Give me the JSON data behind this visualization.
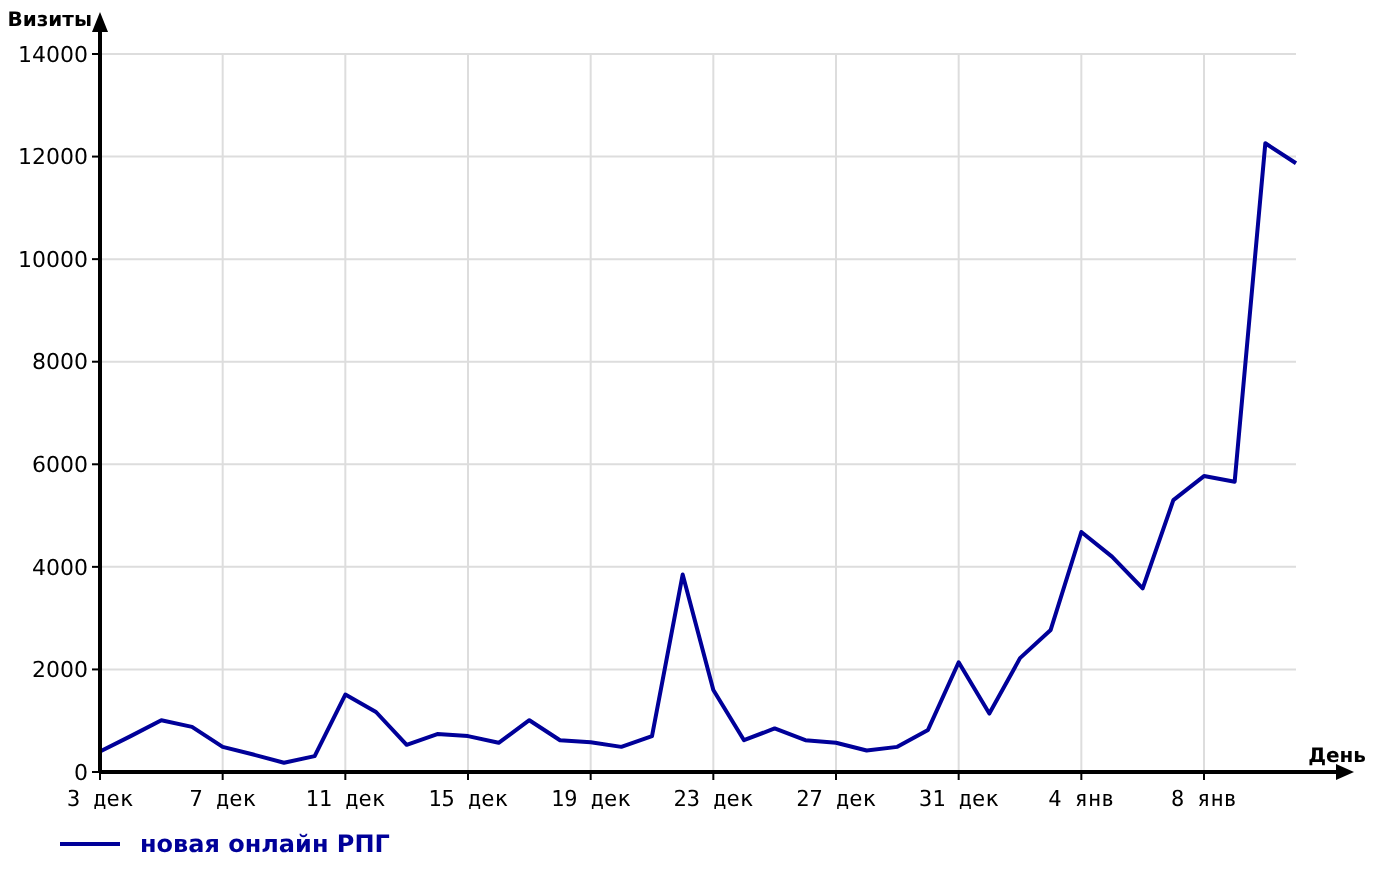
{
  "chart_data": {
    "type": "line",
    "xlabel": "День",
    "ylabel": "Визиты",
    "categories": [
      "3 дек",
      null,
      null,
      null,
      "7 дек",
      null,
      null,
      null,
      "11 дек",
      null,
      null,
      null,
      "15 дек",
      null,
      null,
      null,
      "19 дек",
      null,
      null,
      null,
      "23 дек",
      null,
      null,
      null,
      "27 дек",
      null,
      null,
      null,
      "31 дек",
      null,
      null,
      null,
      "4 янв",
      null,
      null,
      null,
      "8 янв",
      null,
      null,
      null
    ],
    "series": [
      {
        "name": "новая онлайн РПГ",
        "color": "#000099",
        "values": [
          400,
          700,
          1010,
          880,
          490,
          340,
          180,
          310,
          1510,
          1170,
          530,
          740,
          700,
          570,
          1010,
          620,
          580,
          490,
          700,
          3850,
          1600,
          620,
          850,
          620,
          570,
          420,
          490,
          820,
          2140,
          1140,
          2220,
          2770,
          4680,
          4200,
          3580,
          5300,
          5770,
          5660,
          12260,
          11870
        ]
      }
    ],
    "ylim": [
      0,
      14000
    ],
    "yticks": [
      0,
      2000,
      4000,
      6000,
      8000,
      10000,
      12000,
      14000
    ],
    "grid": true,
    "legend": "bottom left",
    "marker": "none",
    "line_style": "solid"
  }
}
